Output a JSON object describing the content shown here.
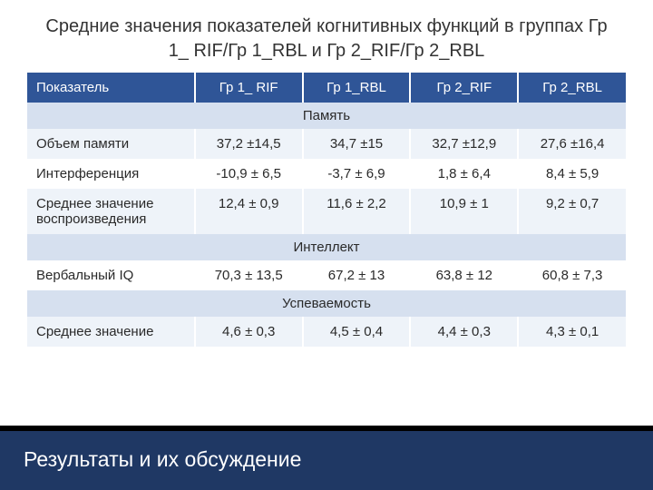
{
  "title": "Средние значения показателей когнитивных функций в группах Гр 1_ RIF/Гр 1_RBL и Гр 2_RIF/Гр 2_RBL",
  "columns": [
    "Показатель",
    "Гр 1_ RIF",
    "Гр 1_RBL",
    "Гр 2_RIF",
    "Гр 2_RBL"
  ],
  "sections": {
    "s0": {
      "label": "Память"
    },
    "s1": {
      "label": "Интеллект"
    },
    "s2": {
      "label": "Успеваемость"
    }
  },
  "rows": {
    "r0": {
      "label": "Объем памяти",
      "c0": "37,2 ±14,5",
      "c1": "34,7 ±15",
      "c2": "32,7 ±12,9",
      "c3": "27,6 ±16,4"
    },
    "r1": {
      "label": "Интерференция",
      "c0": "-10,9 ± 6,5",
      "c1": "-3,7 ± 6,9",
      "c2": "1,8 ± 6,4",
      "c3": "8,4 ± 5,9"
    },
    "r2": {
      "label": "Среднее значение воспроизведения",
      "c0": "12,4 ± 0,9",
      "c1": "11,6 ± 2,2",
      "c2": "10,9 ± 1",
      "c3": "9,2 ± 0,7"
    },
    "r3": {
      "label": "Вербальный IQ",
      "c0": "70,3 ± 13,5",
      "c1": "67,2 ± 13",
      "c2": "63,8 ± 12",
      "c3": "60,8 ± 7,3"
    },
    "r4": {
      "label": "Среднее значение",
      "c0": "4,6 ± 0,3",
      "c1": "4,5 ± 0,4",
      "c2": "4,4 ± 0,3",
      "c3": "4,3 ± 0,1"
    }
  },
  "footer": "Результаты и их обсуждение",
  "colors": {
    "header_bg": "#2f5597",
    "header_fg": "#ffffff",
    "section_bg": "#d6e0ef",
    "row_odd_bg": "#eef3f9",
    "row_even_bg": "#ffffff",
    "footer_bg": "#1f3864",
    "footer_border": "#000000",
    "text": "#2a2a2a"
  },
  "fonts": {
    "title_size_pt": 15,
    "table_size_pt": 11,
    "footer_size_pt": 17
  }
}
